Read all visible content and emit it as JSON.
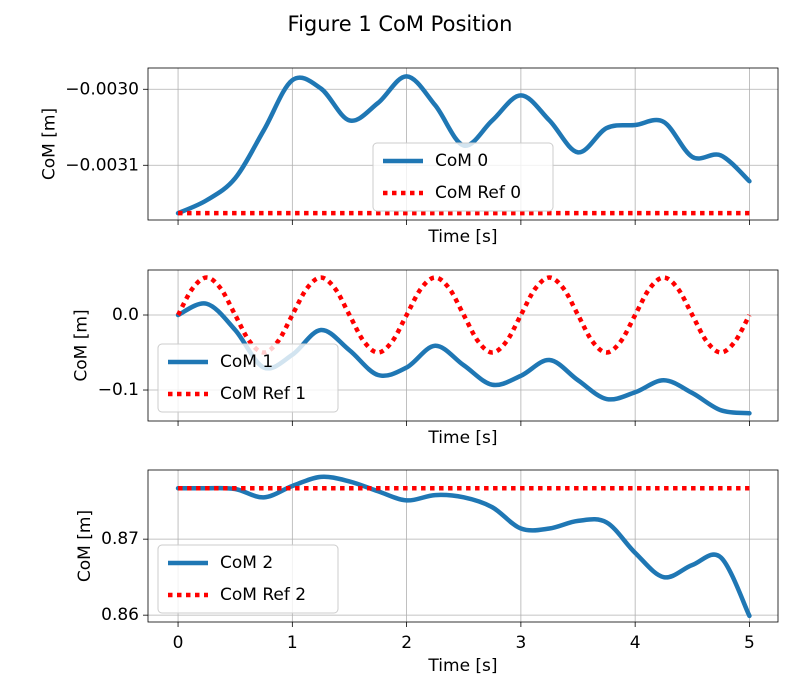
{
  "title": "Figure 1 CoM Position",
  "chart_data": [
    {
      "type": "line",
      "xlabel": "Time [s]",
      "ylabel": "CoM [m]",
      "xlim": [
        -0.263,
        5.25
      ],
      "ylim": [
        -0.003172,
        -0.002972
      ],
      "xticks": [
        0,
        1,
        2,
        3,
        4,
        5
      ],
      "show_xtick_labels": false,
      "yticks": [
        {
          "value": -0.003,
          "label": "−0.0030"
        },
        {
          "value": -0.0031,
          "label": "−0.0031"
        }
      ],
      "grid": true,
      "legend": "lower center",
      "series": [
        {
          "name": "CoM 0",
          "color": "#1f77b4",
          "style": "solid",
          "x": [
            0,
            0.25,
            0.5,
            0.75,
            1,
            1.25,
            1.5,
            1.75,
            2,
            2.25,
            2.5,
            2.75,
            3,
            3.25,
            3.5,
            3.75,
            4,
            4.25,
            4.5,
            4.75,
            5
          ],
          "values": [
            -0.003163,
            -0.003146,
            -0.003117,
            -0.003054,
            -0.002988,
            -0.002999,
            -0.003041,
            -0.003018,
            -0.002983,
            -0.003021,
            -0.003074,
            -0.003041,
            -0.003008,
            -0.003041,
            -0.003083,
            -0.003051,
            -0.003047,
            -0.003043,
            -0.003089,
            -0.003087,
            -0.003121
          ]
        },
        {
          "name": "CoM Ref 0",
          "color": "#ff0000",
          "style": "dotted",
          "x": [
            0,
            5
          ],
          "values": [
            -0.003163,
            -0.003163
          ]
        }
      ]
    },
    {
      "type": "line",
      "xlabel": "Time [s]",
      "ylabel": "CoM [m]",
      "xlim": [
        -0.263,
        5.25
      ],
      "ylim": [
        -0.1413,
        0.06
      ],
      "xticks": [
        0,
        1,
        2,
        3,
        4,
        5
      ],
      "show_xtick_labels": false,
      "yticks": [
        {
          "value": 0,
          "label": "0.0"
        },
        {
          "value": -0.1,
          "label": "−0.1"
        }
      ],
      "grid": true,
      "legend": "lower left",
      "series": [
        {
          "name": "CoM 1",
          "color": "#1f77b4",
          "style": "solid",
          "x": [
            0,
            0.25,
            0.5,
            0.75,
            1,
            1.25,
            1.5,
            1.75,
            2,
            2.25,
            2.5,
            2.75,
            3,
            3.25,
            3.5,
            3.75,
            4,
            4.25,
            4.5,
            4.75,
            5
          ],
          "values": [
            0,
            0.015,
            -0.02,
            -0.07,
            -0.053,
            -0.02,
            -0.047,
            -0.08,
            -0.07,
            -0.041,
            -0.067,
            -0.093,
            -0.081,
            -0.06,
            -0.087,
            -0.112,
            -0.103,
            -0.087,
            -0.104,
            -0.127,
            -0.131
          ]
        },
        {
          "name": "CoM Ref 1",
          "color": "#ff0000",
          "style": "dotted",
          "x": [
            0,
            0.125,
            0.25,
            0.375,
            0.5,
            0.625,
            0.75,
            0.875,
            1,
            1.125,
            1.25,
            1.375,
            1.5,
            1.625,
            1.75,
            1.875,
            2,
            2.125,
            2.25,
            2.375,
            2.5,
            2.625,
            2.75,
            2.875,
            3,
            3.125,
            3.25,
            3.375,
            3.5,
            3.625,
            3.75,
            3.875,
            4,
            4.125,
            4.25,
            4.375,
            4.5,
            4.625,
            4.75,
            4.875,
            5
          ],
          "values": [
            0,
            0.035,
            0.05,
            0.035,
            0,
            -0.035,
            -0.05,
            -0.035,
            0,
            0.035,
            0.05,
            0.035,
            0,
            -0.035,
            -0.05,
            -0.035,
            0,
            0.035,
            0.05,
            0.035,
            0,
            -0.035,
            -0.05,
            -0.035,
            0,
            0.035,
            0.05,
            0.035,
            0,
            -0.035,
            -0.05,
            -0.035,
            0,
            0.035,
            0.05,
            0.035,
            0,
            -0.035,
            -0.05,
            -0.035,
            0
          ]
        }
      ]
    },
    {
      "type": "line",
      "xlabel": "Time [s]",
      "ylabel": "CoM [m]",
      "xlim": [
        -0.263,
        5.25
      ],
      "ylim": [
        0.8591,
        0.8791
      ],
      "xticks": [
        0,
        1,
        2,
        3,
        4,
        5
      ],
      "show_xtick_labels": true,
      "yticks": [
        0.87,
        0.86
      ],
      "grid": true,
      "legend": "lower left",
      "series": [
        {
          "name": "CoM 2",
          "color": "#1f77b4",
          "style": "solid",
          "x": [
            0,
            0.25,
            0.5,
            0.75,
            1,
            1.25,
            1.5,
            1.75,
            2,
            2.25,
            2.5,
            2.75,
            3,
            3.25,
            3.5,
            3.75,
            4,
            4.25,
            4.5,
            4.75,
            5
          ],
          "values": [
            0.8767,
            0.8767,
            0.8766,
            0.8755,
            0.877,
            0.8782,
            0.8776,
            0.8763,
            0.8751,
            0.8758,
            0.8755,
            0.8742,
            0.8714,
            0.8714,
            0.8724,
            0.8722,
            0.8682,
            0.865,
            0.8666,
            0.8676,
            0.8599
          ]
        },
        {
          "name": "CoM Ref 2",
          "color": "#ff0000",
          "style": "dotted",
          "x": [
            0,
            5
          ],
          "values": [
            0.8767,
            0.8767
          ]
        }
      ]
    }
  ]
}
